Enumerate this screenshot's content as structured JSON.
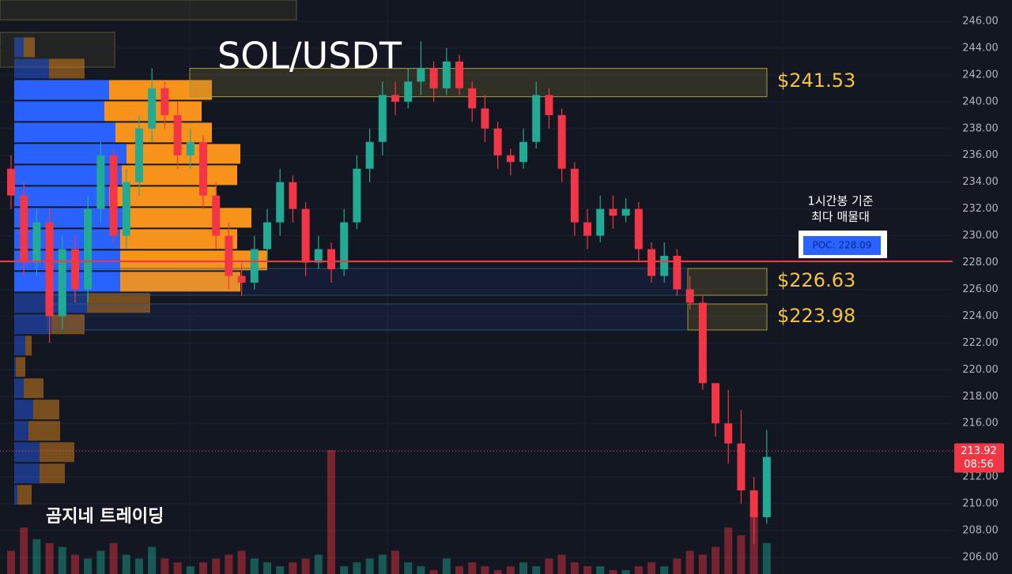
{
  "chart_data": {
    "type": "candlestick",
    "title": "SOL/USDT",
    "watermark": "곰지네 트레이딩",
    "annotations": [
      "1시간봉 기준",
      "최다 매물대"
    ],
    "up_color": "#22ab94",
    "down_color": "#f23645",
    "open": [
      235,
      233,
      228,
      231,
      224,
      229,
      226,
      232,
      236,
      230,
      234,
      238,
      241,
      239,
      236,
      237,
      233,
      230,
      227,
      226.5,
      229,
      231,
      234,
      232,
      228,
      229,
      227.5,
      231,
      235,
      237,
      240.5,
      240,
      241.5,
      242.5,
      241,
      243,
      241,
      239.5,
      238,
      236,
      235.5,
      237,
      240.5,
      239,
      235,
      231,
      230,
      232,
      231.5,
      232,
      229,
      227,
      228.5,
      226,
      225,
      219,
      216,
      214.5,
      211,
      209
    ],
    "high": [
      236,
      234,
      232,
      232,
      230,
      230,
      233,
      237,
      236.5,
      235,
      239,
      242.5,
      241.5,
      240,
      238,
      237.5,
      234,
      231,
      228,
      230,
      232,
      235,
      234.5,
      232.5,
      230,
      229.5,
      232,
      236,
      238,
      241.5,
      241.5,
      242.5,
      244.5,
      243,
      244,
      243.5,
      241.5,
      240.5,
      238.5,
      236.5,
      238,
      241.5,
      241,
      239.5,
      235.5,
      232,
      233,
      233,
      232.8,
      232.5,
      229.5,
      229.5,
      229,
      227,
      225.5,
      219,
      218.5,
      217,
      212,
      215.5
    ],
    "low": [
      232,
      227,
      227,
      222,
      223,
      225,
      225,
      231,
      229.5,
      229,
      233,
      237,
      238,
      235,
      235,
      232,
      229,
      226,
      225.5,
      226,
      228,
      230,
      231,
      227,
      227.5,
      226.5,
      227,
      230.5,
      234,
      236,
      239,
      239.5,
      240.5,
      240,
      240.5,
      240.5,
      238.5,
      237,
      235,
      234.5,
      235,
      236.5,
      238,
      234,
      230,
      229,
      229.5,
      230.5,
      231,
      228,
      226.5,
      226.5,
      225.5,
      224.5,
      218.5,
      215,
      213,
      210,
      207,
      208.5
    ],
    "close": [
      233,
      228,
      231,
      224,
      229,
      226,
      232,
      236,
      230,
      234,
      238,
      241,
      239,
      236,
      237,
      233,
      230,
      227,
      226.5,
      229,
      231,
      234,
      232,
      228,
      229,
      227.5,
      231,
      235,
      237,
      240.5,
      240,
      241.5,
      242.5,
      241,
      243,
      241,
      239.5,
      238,
      236,
      235.5,
      237,
      240.5,
      239,
      235,
      231,
      230,
      232,
      231.5,
      232,
      229,
      227,
      228.5,
      226,
      225,
      219,
      216,
      214.5,
      211,
      209,
      213.5
    ],
    "volume": [
      30,
      60,
      45,
      40,
      35,
      25,
      20,
      30,
      40,
      25,
      20,
      35,
      20,
      15,
      10,
      15,
      20,
      25,
      30,
      20,
      15,
      10,
      15,
      20,
      25,
      160,
      10,
      15,
      20,
      25,
      30,
      15,
      10,
      5,
      20,
      10,
      15,
      10,
      5,
      10,
      15,
      10,
      20,
      25,
      15,
      10,
      10,
      5,
      5,
      10,
      15,
      10,
      20,
      30,
      25,
      35,
      60,
      50,
      80,
      40
    ],
    "volume_profile": {
      "prices": [
        244.06,
        242.47,
        240.88,
        239.29,
        237.7,
        236.11,
        234.52,
        232.93,
        231.34,
        229.75,
        228.16,
        226.57,
        224.98,
        223.39,
        221.8,
        220.21,
        218.62,
        217.03,
        215.44,
        213.85,
        212.26,
        210.67
      ],
      "buy": [
        12,
        44,
        120,
        114,
        128,
        142,
        136,
        120,
        146,
        134,
        134,
        134,
        92,
        47,
        14,
        2,
        12,
        24,
        18,
        32,
        32,
        4
      ],
      "sell": [
        14,
        45,
        130,
        123,
        122,
        144,
        146,
        136,
        154,
        148,
        186,
        152,
        80,
        42,
        8,
        12,
        25,
        33,
        40,
        44,
        32,
        18
      ],
      "buy_color": "#2962ff",
      "sell_color": "#f7931a"
    },
    "zones": [
      {
        "value": 241.53,
        "label": "$241.53",
        "top": 242.49,
        "bottom": 240.37
      },
      {
        "value": 226.63,
        "label": "$226.63",
        "top": 227.56,
        "bottom": 225.56
      },
      {
        "value": 223.98,
        "label": "$223.98",
        "top": 224.91,
        "bottom": 222.97
      }
    ],
    "poc": {
      "value": 228.09,
      "label": "POC: 228.09"
    },
    "last_price": 213.92,
    "countdown": "08:56",
    "ylim": [
      204.76,
      247.59
    ],
    "yticks": [
      {
        "value": 206,
        "label": "206.00"
      },
      {
        "value": 208,
        "label": "208.00"
      },
      {
        "value": 210,
        "label": "210.00"
      },
      {
        "value": 212,
        "label": "212.00"
      },
      {
        "value": 214,
        "label": "214.00"
      },
      {
        "value": 216,
        "label": "216.00"
      },
      {
        "value": 218,
        "label": "218.00"
      },
      {
        "value": 220,
        "label": "220.00"
      },
      {
        "value": 222,
        "label": "222.00"
      },
      {
        "value": 224,
        "label": "224.00"
      },
      {
        "value": 226,
        "label": "226.00"
      },
      {
        "value": 228,
        "label": "228.00"
      },
      {
        "value": 230,
        "label": "230.00"
      },
      {
        "value": 232,
        "label": "232.00"
      },
      {
        "value": 234,
        "label": "234.00"
      },
      {
        "value": 236,
        "label": "236.00"
      },
      {
        "value": 238,
        "label": "238.00"
      },
      {
        "value": 240,
        "label": "240.00"
      },
      {
        "value": 242,
        "label": "242.00"
      },
      {
        "value": 244,
        "label": "244.00"
      },
      {
        "value": 246,
        "label": "246.00"
      }
    ],
    "grid": true
  }
}
